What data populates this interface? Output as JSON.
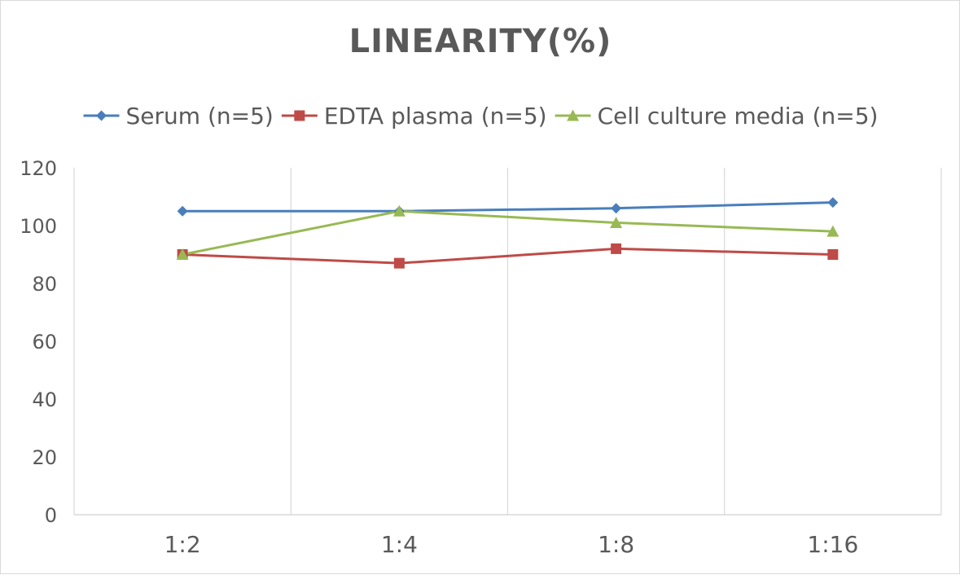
{
  "chart_data": {
    "type": "line",
    "title": "LINEARITY(%)",
    "xlabel": "",
    "ylabel": "",
    "categories": [
      "1:2",
      "1:4",
      "1:8",
      "1:16"
    ],
    "ylim": [
      0,
      120
    ],
    "yticks": [
      0,
      20,
      40,
      60,
      80,
      100,
      120
    ],
    "grid": "vertical",
    "legend_position": "top",
    "series": [
      {
        "name": "Serum (n=5)",
        "values": [
          105,
          105,
          106,
          108
        ],
        "color": "#4A7EBB",
        "marker": "diamond"
      },
      {
        "name": "EDTA plasma (n=5)",
        "values": [
          90,
          87,
          92,
          90
        ],
        "color": "#BE4B48",
        "marker": "square"
      },
      {
        "name": "Cell culture media (n=5)",
        "values": [
          90,
          105,
          101,
          98
        ],
        "color": "#98B954",
        "marker": "triangle"
      }
    ]
  }
}
